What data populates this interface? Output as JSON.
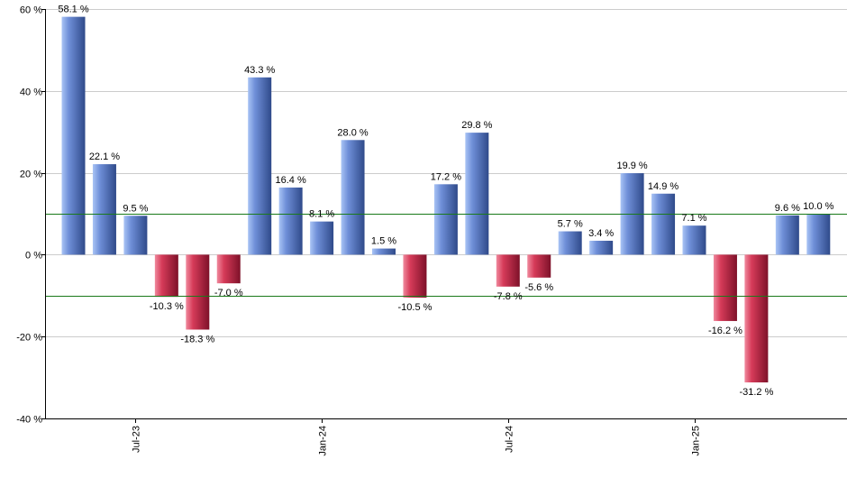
{
  "chart_data": {
    "type": "bar",
    "values": [
      58.1,
      22.1,
      9.5,
      -10.3,
      -18.3,
      -7.0,
      43.3,
      16.4,
      8.1,
      28.0,
      1.5,
      -10.5,
      17.2,
      29.8,
      -7.8,
      -5.6,
      5.7,
      3.4,
      19.9,
      14.9,
      7.1,
      -16.2,
      -31.2,
      9.6,
      10.0
    ],
    "data_labels": [
      "58.1 %",
      "22.1 %",
      "9.5 %",
      "-10.3 %",
      "-18.3 %",
      "-7.0 %",
      "43.3 %",
      "16.4 %",
      "8.1 %",
      "28.0 %",
      "1.5 %",
      "-10.5 %",
      "17.2 %",
      "29.8 %",
      "-7.8 %",
      "-5.6 %",
      "5.7 %",
      "3.4 %",
      "19.9 %",
      "14.9 %",
      "7.1 %",
      "-16.2 %",
      "-31.2 %",
      "9.6 %",
      "10.0 %"
    ],
    "x_ticks": [
      {
        "label": "Jul-23",
        "index": 2
      },
      {
        "label": "Jan-24",
        "index": 8
      },
      {
        "label": "Jul-24",
        "index": 14
      },
      {
        "label": "Jan-25",
        "index": 20
      }
    ],
    "y_ticks": [
      {
        "value": 60,
        "label": "60 %"
      },
      {
        "value": 40,
        "label": "40 %"
      },
      {
        "value": 20,
        "label": "20 %"
      },
      {
        "value": 0,
        "label": "0 %"
      },
      {
        "value": -20,
        "label": "-20 %"
      },
      {
        "value": -40,
        "label": "-40 %"
      }
    ],
    "ylim": [
      -40,
      60
    ],
    "reference_lines": [
      10,
      -10
    ],
    "grid": true,
    "title": "",
    "xlabel": "",
    "ylabel": "",
    "colors": {
      "positive_light": "#a9c4f5",
      "positive_mid": "#6f8fd8",
      "positive_dark": "#2f4a8a",
      "negative_light": "#f08a9e",
      "negative_mid": "#d63b59",
      "negative_dark": "#7e1129",
      "reference_line": "#1a7a1a",
      "grid": "#cccccc",
      "axis": "#000000"
    }
  }
}
